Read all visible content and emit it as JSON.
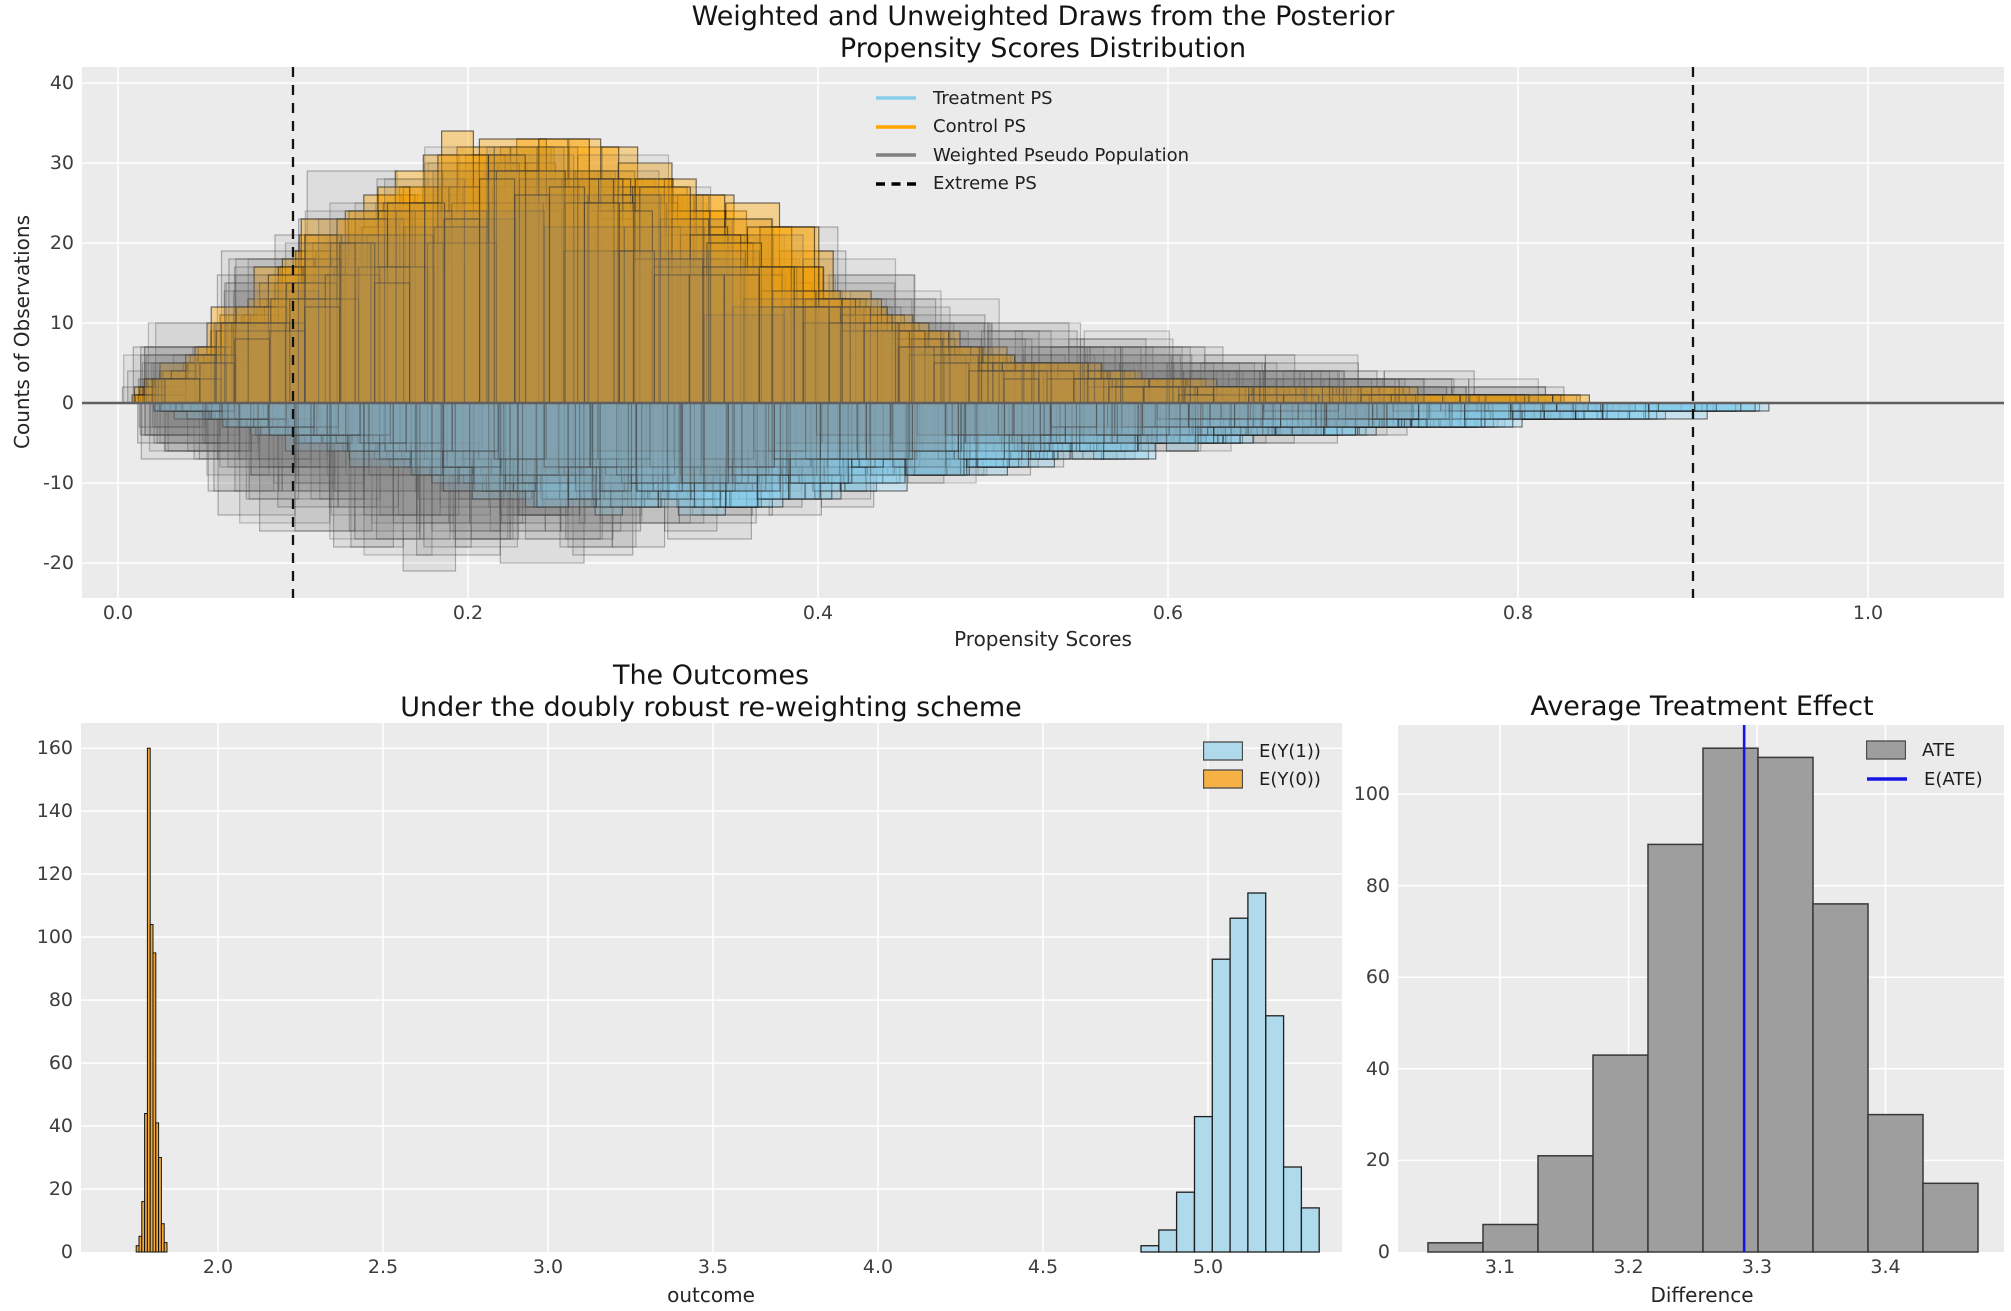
{
  "figure": {
    "bg": "#ffffff",
    "axes_bg": "#ebebeb",
    "grid_color": "#ffffff",
    "title_color": "#141414",
    "tick_color": "#3d3d3d"
  },
  "top_chart": {
    "title_lines": [
      "Weighted and Unweighted Draws from the Posterior",
      "Propensity Scores Distribution"
    ],
    "xlabel": "Propensity Scores",
    "ylabel": "Counts of Observations",
    "xtick_values": [
      0.0,
      0.2,
      0.4,
      0.6,
      0.8,
      1.0
    ],
    "xtick_labels": [
      "0.0",
      "0.2",
      "0.4",
      "0.6",
      "0.8",
      "1.0"
    ],
    "ytick_values": [
      -20,
      -10,
      0,
      10,
      20,
      30,
      40
    ],
    "ytick_labels": [
      "-20",
      "-10",
      "0",
      "10",
      "20",
      "30",
      "40"
    ],
    "legend": [
      {
        "label": "Treatment PS",
        "color": "#87ceeb",
        "style": "line"
      },
      {
        "label": "Control PS",
        "color": "#ffa500",
        "style": "line"
      },
      {
        "label": "Weighted Pseudo Population",
        "color": "#808080",
        "style": "line"
      },
      {
        "label": "Extreme PS",
        "color": "#000000",
        "style": "dashed"
      }
    ],
    "chart_data": {
      "type": "mirrored_histogram_posterior_draws",
      "xlim": [
        -0.021,
        1.078
      ],
      "ylim": [
        -24.4,
        42.0
      ],
      "extreme_ps": [
        0.1,
        0.9
      ],
      "axis_line_y": 0,
      "seed": 20240717,
      "series": [
        {
          "id": "weighted-top-under",
          "name": "Weighted Pseudo Population (above)",
          "side": "up",
          "n_draws": 10,
          "x_range": [
            0.012,
            0.82
          ],
          "bin_width_range": [
            0.026,
            0.055
          ],
          "scale_range": [
            0.75,
            1.25
          ],
          "noise": 0.3,
          "cap_range": [
            29,
            39.5
          ],
          "tail_var": 0.15,
          "fill": "rgba(128,128,128,0.13)",
          "edge": "rgba(60,60,60,0.38)",
          "mean_x": [
            0.012,
            0.05,
            0.09,
            0.13,
            0.17,
            0.21,
            0.25,
            0.29,
            0.33,
            0.37,
            0.42,
            0.47,
            0.52,
            0.58,
            0.64,
            0.7,
            0.76,
            0.82
          ],
          "mean_counts": [
            2,
            8,
            15,
            20,
            23,
            25,
            24,
            22,
            19,
            16,
            12,
            9,
            7,
            5.5,
            4.5,
            3.5,
            2.2,
            1.2
          ]
        },
        {
          "id": "weighted-bottom-under",
          "name": "Weighted Pseudo Population (below)",
          "side": "down",
          "n_draws": 10,
          "x_range": [
            0.02,
            0.85
          ],
          "bin_width_range": [
            0.026,
            0.055
          ],
          "scale_range": [
            0.75,
            1.32
          ],
          "noise": 0.3,
          "cap_range": [
            16,
            22
          ],
          "tail_var": 0.2,
          "fill": "rgba(128,128,128,0.13)",
          "edge": "rgba(60,60,60,0.38)",
          "mean_x": [
            0.02,
            0.06,
            0.1,
            0.14,
            0.18,
            0.22,
            0.26,
            0.3,
            0.35,
            0.4,
            0.45,
            0.5,
            0.56,
            0.62,
            0.68,
            0.74,
            0.8,
            0.85
          ],
          "mean_counts": [
            3,
            7,
            10,
            12.5,
            14,
            14,
            13.5,
            12,
            10,
            8.5,
            7,
            5.5,
            4.5,
            3.5,
            3,
            2.2,
            1.5,
            1
          ]
        },
        {
          "id": "control",
          "name": "Control PS",
          "side": "up",
          "n_draws": 28,
          "x_range": [
            0.016,
            0.84
          ],
          "bin_width_range": [
            0.017,
            0.04
          ],
          "scale_range": [
            0.72,
            1.14
          ],
          "noise": 0.22,
          "cap_range": [
            32,
            38.5
          ],
          "tail_var": 0.22,
          "fill": "rgba(255,165,0,0.40)",
          "edge": "rgba(0,0,0,0.55)",
          "mean_x": [
            0.02,
            0.05,
            0.08,
            0.11,
            0.14,
            0.17,
            0.2,
            0.23,
            0.26,
            0.3,
            0.34,
            0.38,
            0.42,
            0.46,
            0.5,
            0.55,
            0.6,
            0.65,
            0.7,
            0.75,
            0.8,
            0.84
          ],
          "mean_counts": [
            1,
            5,
            11,
            16,
            20,
            24,
            27,
            29,
            28,
            25,
            21,
            17,
            11,
            7.5,
            5,
            3.5,
            2.2,
            1.8,
            1.4,
            1,
            0.6,
            0.4
          ]
        },
        {
          "id": "treatment",
          "name": "Treatment PS",
          "side": "down",
          "n_draws": 30,
          "x_range": [
            0.03,
            0.95
          ],
          "bin_width_range": [
            0.009,
            0.036
          ],
          "scale_range": [
            0.72,
            1.15
          ],
          "noise": 0.24,
          "cap_range": [
            12,
            16.5
          ],
          "tail_var": 0.25,
          "fill": "rgba(135,206,235,0.36)",
          "edge": "rgba(0,0,0,0.50)",
          "mean_x": [
            0.03,
            0.07,
            0.11,
            0.15,
            0.19,
            0.23,
            0.27,
            0.31,
            0.35,
            0.4,
            0.45,
            0.5,
            0.55,
            0.6,
            0.65,
            0.7,
            0.75,
            0.8,
            0.85,
            0.9,
            0.95
          ],
          "mean_counts": [
            0.5,
            2,
            4,
            6,
            8,
            10,
            11,
            11.5,
            11,
            9.5,
            8,
            6.5,
            5.5,
            4.5,
            3.5,
            3,
            2.5,
            2,
            1.5,
            1,
            0.6
          ]
        },
        {
          "id": "weighted-top-over",
          "name": "Weighted Pseudo Population (above, overlay)",
          "side": "up",
          "n_draws": 7,
          "x_range": [
            0.012,
            0.82
          ],
          "bin_width_range": [
            0.026,
            0.055
          ],
          "scale_range": [
            0.75,
            1.25
          ],
          "noise": 0.3,
          "cap_range": [
            29,
            39.5
          ],
          "tail_var": 0.15,
          "fill": "rgba(128,128,128,0.10)",
          "edge": "rgba(60,60,60,0.30)",
          "mean_x": [
            0.012,
            0.05,
            0.09,
            0.13,
            0.17,
            0.21,
            0.25,
            0.29,
            0.33,
            0.37,
            0.42,
            0.47,
            0.52,
            0.58,
            0.64,
            0.7,
            0.76,
            0.82
          ],
          "mean_counts": [
            2,
            8,
            15,
            20,
            23,
            25,
            24,
            22,
            19,
            16,
            12,
            9,
            7,
            5.5,
            4.5,
            3.5,
            2.2,
            1.2
          ]
        },
        {
          "id": "weighted-bottom-over",
          "name": "Weighted Pseudo Population (below, overlay)",
          "side": "down",
          "n_draws": 7,
          "x_range": [
            0.02,
            0.85
          ],
          "bin_width_range": [
            0.026,
            0.055
          ],
          "scale_range": [
            0.75,
            1.32
          ],
          "noise": 0.3,
          "cap_range": [
            16,
            22
          ],
          "tail_var": 0.2,
          "fill": "rgba(128,128,128,0.10)",
          "edge": "rgba(60,60,60,0.30)",
          "mean_x": [
            0.02,
            0.06,
            0.1,
            0.14,
            0.18,
            0.22,
            0.26,
            0.3,
            0.35,
            0.4,
            0.45,
            0.5,
            0.56,
            0.62,
            0.68,
            0.74,
            0.8,
            0.85
          ],
          "mean_counts": [
            3,
            7,
            10,
            12.5,
            14,
            14,
            13.5,
            12,
            10,
            8.5,
            7,
            5.5,
            4.5,
            3.5,
            3,
            2.2,
            1.5,
            1
          ]
        }
      ]
    }
  },
  "outcomes_chart": {
    "title_lines": [
      "The Outcomes",
      "Under the doubly robust re-weighting scheme"
    ],
    "xlabel": "outcome",
    "xtick_values": [
      2.0,
      2.5,
      3.0,
      3.5,
      4.0,
      4.5,
      5.0
    ],
    "xtick_labels": [
      "2.0",
      "2.5",
      "3.0",
      "3.5",
      "4.0",
      "4.5",
      "5.0"
    ],
    "ytick_values": [
      0,
      20,
      40,
      60,
      80,
      100,
      120,
      140,
      160
    ],
    "ytick_labels": [
      "0",
      "20",
      "40",
      "60",
      "80",
      "100",
      "120",
      "140",
      "160"
    ],
    "legend": [
      {
        "label": "E(Y(1))",
        "color": "#aedaec",
        "style": "patch"
      },
      {
        "label": "E(Y(0))",
        "color": "#f5b144",
        "style": "patch"
      }
    ],
    "chart_data": {
      "type": "histogram",
      "xlim": [
        1.585,
        5.406
      ],
      "ylim": [
        0,
        168
      ],
      "series": [
        {
          "name": "E(Y(1))",
          "bin_start": 4.797,
          "bin_width": 0.054,
          "counts": [
            2,
            7,
            19,
            43,
            93,
            106,
            114,
            75,
            27,
            14
          ],
          "fill": "#aedaec",
          "edge": "#1f1f1f",
          "edge_width": 1.3
        },
        {
          "name": "E(Y(0))",
          "bin_start": 1.752,
          "bin_width": 0.0085,
          "counts": [
            2,
            5,
            16,
            44,
            160,
            104,
            95,
            41,
            30,
            9,
            3
          ],
          "fill": "#f2a93b",
          "edge": "#141414",
          "edge_width": 1.0
        }
      ]
    }
  },
  "ate_chart": {
    "title": "Average Treatment Effect",
    "xlabel": "Difference",
    "xtick_values": [
      3.1,
      3.2,
      3.3,
      3.4
    ],
    "xtick_labels": [
      "3.1",
      "3.2",
      "3.3",
      "3.4"
    ],
    "ytick_values": [
      0,
      20,
      40,
      60,
      80,
      100
    ],
    "ytick_labels": [
      "0",
      "20",
      "40",
      "60",
      "80",
      "100"
    ],
    "legend": [
      {
        "label": "ATE",
        "color": "#9e9e9e",
        "style": "patch"
      },
      {
        "label": "E(ATE)",
        "color": "#1515e6",
        "style": "line"
      }
    ],
    "chart_data": {
      "type": "histogram",
      "xlim": [
        3.02,
        3.494
      ],
      "ylim": [
        0,
        115.5
      ],
      "bin_start": 3.044,
      "bin_width": 0.0428,
      "counts": [
        2,
        6,
        21,
        43,
        89,
        110,
        108,
        76,
        30,
        15
      ],
      "e_ate": 3.29,
      "fill": "#9e9e9e",
      "edge": "#383838",
      "line_color": "#1515e6"
    }
  }
}
